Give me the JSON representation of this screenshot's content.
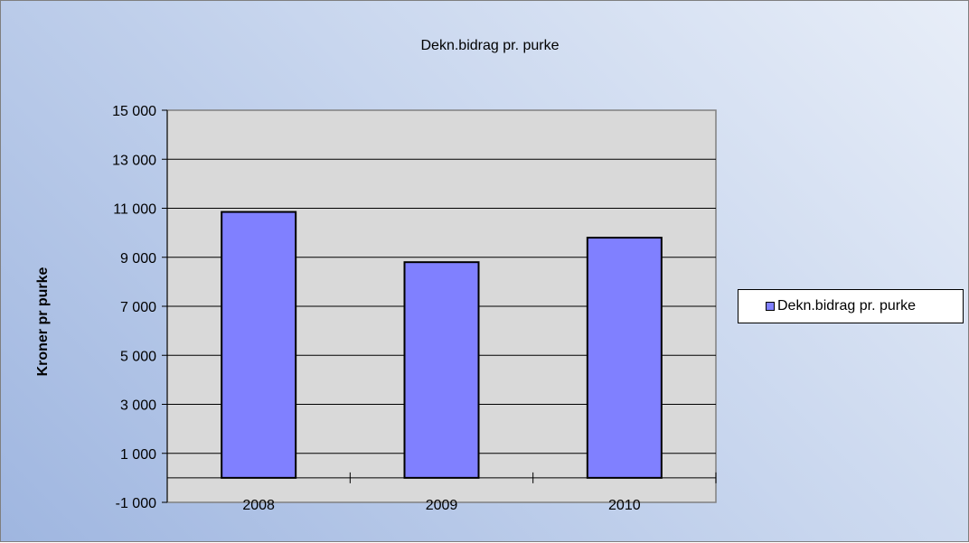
{
  "chart_data": {
    "type": "bar",
    "title": "Dekn.bidrag pr. purke",
    "xlabel": "",
    "ylabel": "Kroner pr purke",
    "categories": [
      "2008",
      "2009",
      "2010"
    ],
    "series": [
      {
        "name": "Dekn.bidrag pr. purke",
        "values": [
          10850,
          8800,
          9800
        ],
        "color": "#8080ff"
      }
    ],
    "ylim": [
      -1000,
      15000
    ],
    "yticks": [
      -1000,
      1000,
      3000,
      5000,
      7000,
      9000,
      11000,
      13000,
      15000
    ],
    "ytick_labels": [
      "-1 000",
      "1 000",
      "3 000",
      "5 000",
      "7 000",
      "9 000",
      "11 000",
      "13 000",
      "15 000"
    ],
    "negative_tick_color": "#ff0000",
    "plot_background": "#d9d9d9",
    "grid": true,
    "legend_position": "right"
  }
}
